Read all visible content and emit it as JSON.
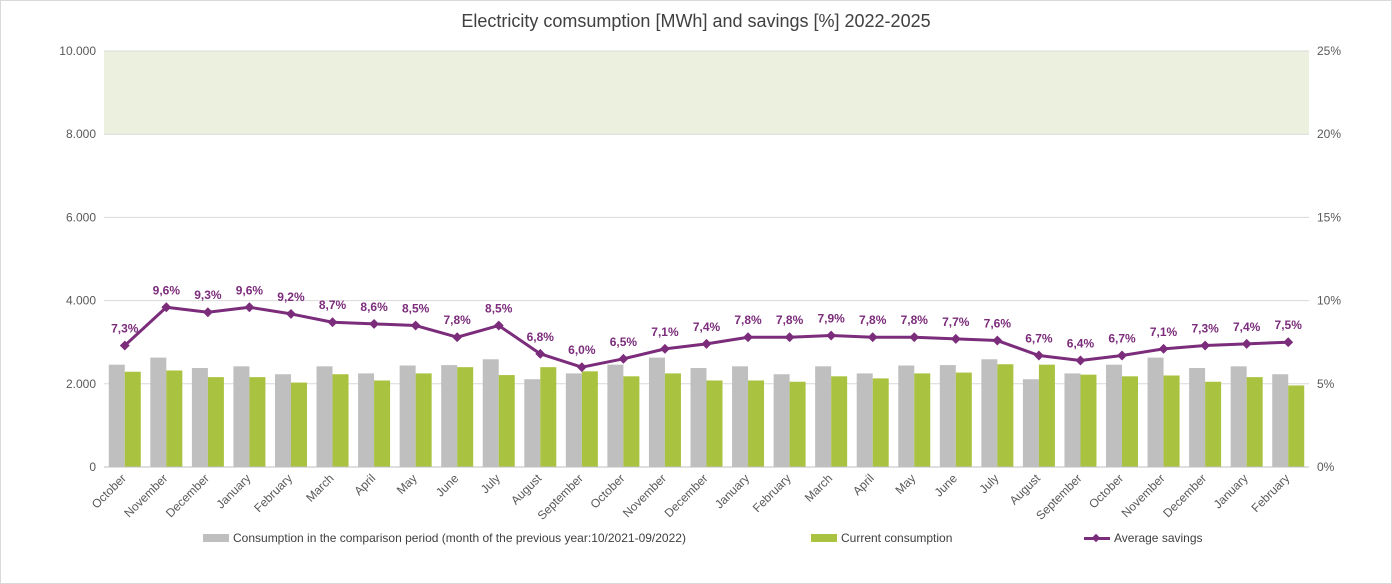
{
  "chart_data": {
    "type": "bar",
    "title": "Electricity comsumption [MWh] and savings [%] 2022-2025",
    "categories": [
      "October",
      "November",
      "December",
      "January",
      "February",
      "March",
      "April",
      "May",
      "June",
      "July",
      "August",
      "September",
      "October",
      "November",
      "December",
      "January",
      "February",
      "March",
      "April",
      "May",
      "June",
      "July",
      "August",
      "September",
      "October",
      "November",
      "December",
      "January",
      "February"
    ],
    "y_left": {
      "ticks": [
        "0",
        "2.000",
        "4.000",
        "6.000",
        "8.000",
        "10.000"
      ],
      "ylim": [
        0,
        10000
      ]
    },
    "y_right": {
      "ticks": [
        "0%",
        "5%",
        "10%",
        "15%",
        "20%",
        "25%"
      ],
      "ylim": [
        0,
        25
      ]
    },
    "highlight_band": {
      "from": 20,
      "to": 25,
      "axis": "right",
      "color": "#ebf1de"
    },
    "grid": true,
    "legend_position": "bottom",
    "series": [
      {
        "name": "Consumption in the comparison period (month of the previous year:10/2021-09/2022)",
        "kind": "bar",
        "axis": "left",
        "color": "#bfbfbf",
        "values": [
          2460,
          2630,
          2380,
          2420,
          2230,
          2420,
          2250,
          2440,
          2450,
          2590,
          2110,
          2250,
          2460,
          2630,
          2380,
          2420,
          2230,
          2420,
          2250,
          2440,
          2450,
          2590,
          2110,
          2250,
          2460,
          2630,
          2380,
          2420,
          2230
        ]
      },
      {
        "name": "Current consumption",
        "kind": "bar",
        "axis": "left",
        "color": "#a9c23f",
        "values": [
          2290,
          2320,
          2160,
          2160,
          2030,
          2230,
          2080,
          2250,
          2400,
          2210,
          2400,
          2300,
          2180,
          2250,
          2080,
          2080,
          2050,
          2180,
          2130,
          2250,
          2270,
          2470,
          2460,
          2220,
          2180,
          2200,
          2050,
          2160,
          1960
        ]
      },
      {
        "name": "Average savings",
        "kind": "line",
        "axis": "right",
        "color": "#7b2c7b",
        "values": [
          7.3,
          9.6,
          9.3,
          9.6,
          9.2,
          8.7,
          8.6,
          8.5,
          7.8,
          8.5,
          6.8,
          6.0,
          6.5,
          7.1,
          7.4,
          7.8,
          7.8,
          7.9,
          7.8,
          7.8,
          7.7,
          7.6,
          6.7,
          6.4,
          6.7,
          7.1,
          7.3,
          7.4,
          7.5
        ],
        "labels": [
          "7,3%",
          "9,6%",
          "9,3%",
          "9,6%",
          "9,2%",
          "8,7%",
          "8,6%",
          "8,5%",
          "7,8%",
          "8,5%",
          "6,8%",
          "6,0%",
          "6,5%",
          "7,1%",
          "7,4%",
          "7,8%",
          "7,8%",
          "7,9%",
          "7,8%",
          "7,8%",
          "7,7%",
          "7,6%",
          "6,7%",
          "6,4%",
          "6,7%",
          "7,1%",
          "7,3%",
          "7,4%",
          "7,5%"
        ]
      }
    ]
  }
}
